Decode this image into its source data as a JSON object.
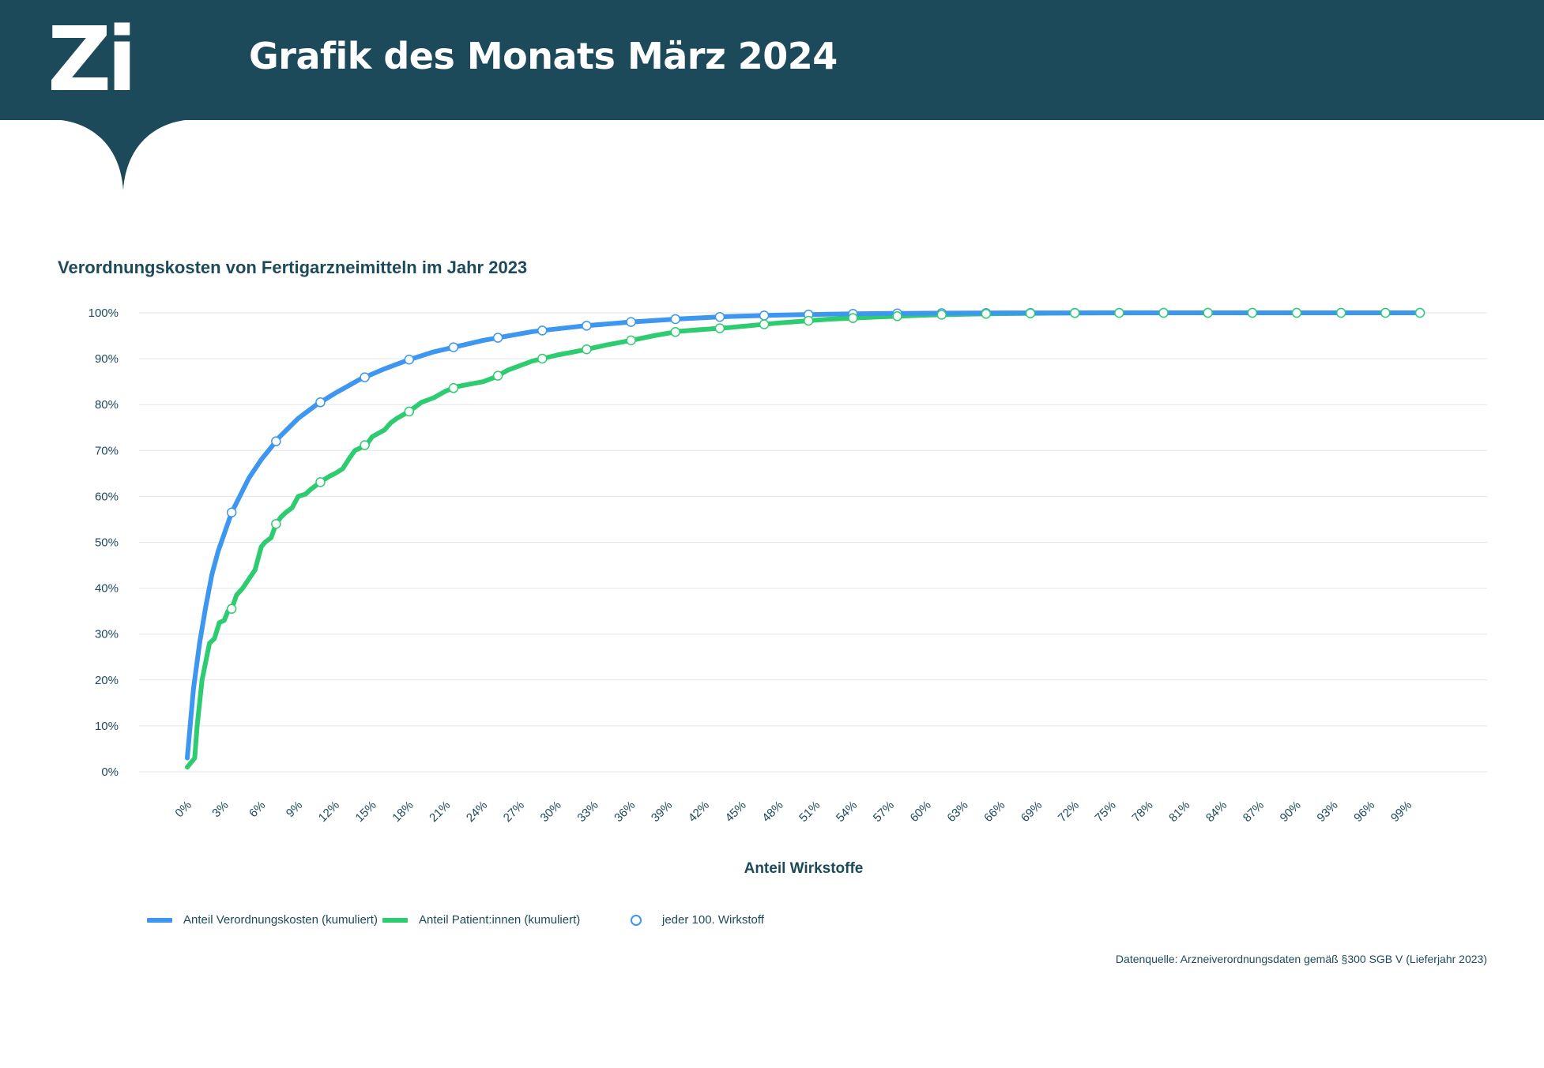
{
  "header": {
    "logo": "Zi",
    "title": "Grafik des Monats März 2024"
  },
  "colors": {
    "header_bg": "#1d4a5a",
    "series_cost": "#3d96ef",
    "series_patients": "#2ecc71",
    "marker_stroke": "#3d96ef"
  },
  "chart_data": {
    "type": "line",
    "title": "Verordnungskosten von Fertigarzneimitteln im Jahr 2023",
    "xlabel": "Anteil Wirkstoffe",
    "ylabel": "",
    "xlim": [
      0,
      100
    ],
    "ylim": [
      0,
      100
    ],
    "grid": true,
    "legend_position": "bottom-left",
    "x_tick_labels": [
      "0%",
      "3%",
      "6%",
      "9%",
      "12%",
      "15%",
      "18%",
      "21%",
      "24%",
      "27%",
      "30%",
      "33%",
      "36%",
      "39%",
      "42%",
      "45%",
      "48%",
      "51%",
      "54%",
      "57%",
      "60%",
      "63%",
      "66%",
      "69%",
      "72%",
      "75%",
      "78%",
      "81%",
      "84%",
      "87%",
      "90%",
      "93%",
      "96%",
      "99%"
    ],
    "y_tick_labels": [
      "0%",
      "10%",
      "20%",
      "30%",
      "40%",
      "50%",
      "60%",
      "70%",
      "80%",
      "90%",
      "100%"
    ],
    "series": [
      {
        "name": "Anteil Verordnungskosten (kumuliert)",
        "x": [
          0,
          0.5,
          1,
          1.5,
          2,
          2.5,
          3.6,
          5,
          6,
          7.5,
          9,
          10.5,
          12,
          14,
          16,
          18,
          20,
          24,
          28,
          32,
          36,
          40,
          44,
          48,
          52,
          56,
          60,
          64,
          68,
          72,
          76,
          80,
          84,
          88,
          92,
          96,
          100
        ],
        "y": [
          3,
          18,
          28,
          36,
          43,
          48,
          56.5,
          64,
          68,
          73,
          77,
          80,
          82.5,
          85.5,
          87.8,
          89.8,
          91.5,
          94,
          95.9,
          97.1,
          98,
          98.7,
          99.2,
          99.5,
          99.7,
          99.85,
          99.92,
          99.96,
          99.98,
          99.99,
          100,
          100,
          100,
          100,
          100,
          100,
          100
        ]
      },
      {
        "name": "Anteil Patient:innen (kumuliert)",
        "x": [
          0,
          0.3,
          0.6,
          0.8,
          1,
          1.2,
          1.5,
          1.8,
          2.2,
          2.6,
          3,
          3.3,
          3.6,
          4,
          4.5,
          5,
          5.5,
          6,
          6.3,
          6.8,
          7.2,
          7.6,
          8,
          8.5,
          9,
          9.6,
          10,
          10.5,
          11,
          11.6,
          12,
          12.6,
          13.2,
          13.6,
          14,
          14.6,
          15,
          16,
          16.5,
          17,
          18,
          19,
          20,
          21,
          22,
          23,
          24,
          25,
          26,
          26.5,
          28,
          30,
          32,
          34,
          36,
          38,
          40,
          44,
          48,
          52,
          56,
          60,
          64,
          68,
          72,
          76,
          80,
          84,
          88,
          92,
          96,
          100
        ],
        "y": [
          1,
          2,
          3,
          10,
          15,
          20,
          24,
          28,
          29,
          32.5,
          33,
          35,
          35.5,
          38.5,
          40,
          42,
          44,
          49,
          50,
          51,
          54,
          55.5,
          56.5,
          57.5,
          60,
          60.5,
          61.5,
          62.5,
          63.5,
          64.5,
          65,
          66,
          68.5,
          70,
          70.5,
          71.5,
          73,
          74.5,
          76,
          77,
          78.5,
          80.5,
          81.5,
          83,
          84,
          84.5,
          85,
          86,
          87.5,
          88,
          89.5,
          90.8,
          91.8,
          93,
          94,
          95.1,
          96,
          96.8,
          97.8,
          98.6,
          99.1,
          99.5,
          99.75,
          99.88,
          99.95,
          99.98,
          100,
          100,
          100,
          100,
          100,
          100
        ]
      }
    ],
    "markers": {
      "name": "jeder 100. Wirkstoff",
      "x": [
        3.6,
        7.2,
        10.8,
        14.4,
        18,
        21.6,
        25.2,
        28.8,
        32.4,
        36,
        39.6,
        43.2,
        46.8,
        50.4,
        54,
        57.6,
        61.2,
        64.8,
        68.4,
        72,
        75.6,
        79.2,
        82.8,
        86.4,
        90,
        93.6,
        97.2,
        100
      ]
    }
  },
  "source": "Datenquelle: Arzneiverordnungsdaten gemäß §300 SGB V (Lieferjahr 2023)"
}
